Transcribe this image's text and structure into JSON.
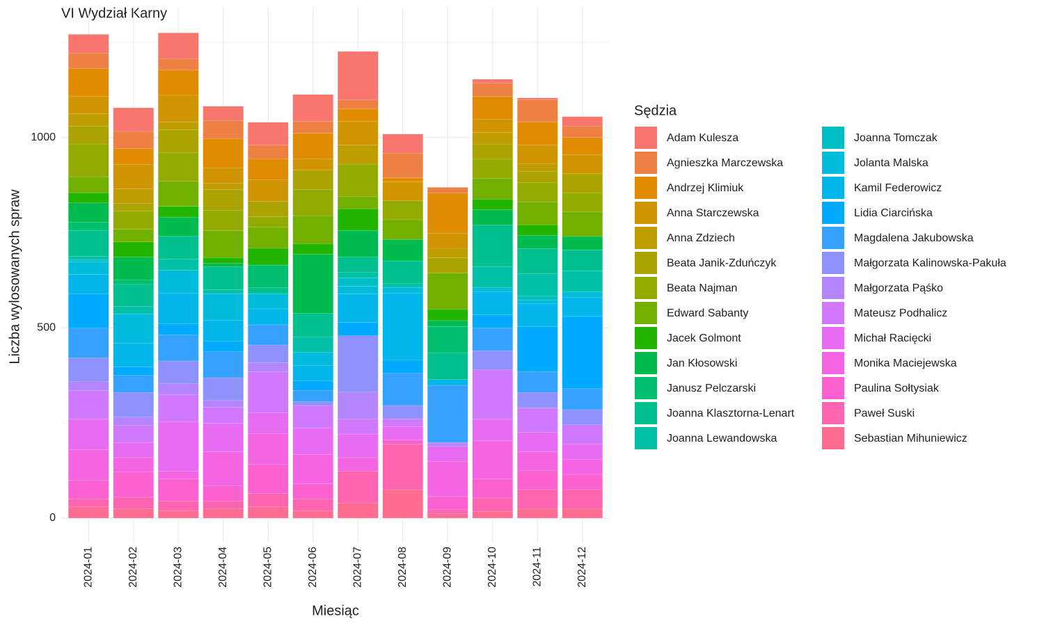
{
  "chart_data": {
    "type": "stacked_bar",
    "title": "VI Wydział Karny",
    "x_label": "Miesiąc",
    "y_label": "Liczba wylosowanych spraw",
    "legend_title": "Sędzia",
    "legend_position": "right",
    "grid": true,
    "categories": [
      "2024-01",
      "2024-02",
      "2024-03",
      "2024-04",
      "2024-05",
      "2024-06",
      "2024-07",
      "2024-08",
      "2024-09",
      "2024-10",
      "2024-11",
      "2024-12"
    ],
    "ylim": [
      -64,
      1343
    ],
    "yticks": [
      0,
      500,
      1000
    ],
    "minor_yticks": [
      250,
      750,
      1250
    ],
    "series": [
      {
        "name": "Adam Kulesza",
        "color": "#F8766D",
        "values": [
          49,
          62,
          68,
          38,
          60,
          70,
          127,
          50,
          0,
          10,
          5,
          25
        ]
      },
      {
        "name": "Agnieszka Marczewska",
        "color": "#EE8044",
        "values": [
          40,
          45,
          30,
          47,
          36,
          32,
          23,
          65,
          15,
          35,
          58,
          30
        ]
      },
      {
        "name": "Andrzej Klimiuk",
        "color": "#E08B00",
        "values": [
          73,
          42,
          66,
          77,
          55,
          67,
          33,
          10,
          105,
          60,
          60,
          45
        ]
      },
      {
        "name": "Anna Starczewska",
        "color": "#D09400",
        "values": [
          47,
          64,
          70,
          40,
          57,
          30,
          63,
          50,
          40,
          35,
          50,
          50
        ]
      },
      {
        "name": "Anna Zdziech",
        "color": "#BF9C00",
        "values": [
          33,
          38,
          20,
          17,
          0,
          0,
          50,
          0,
          25,
          30,
          20,
          0
        ]
      },
      {
        "name": "Beata Janik-Zduńczyk",
        "color": "#AAA300",
        "values": [
          46,
          20,
          60,
          55,
          40,
          50,
          0,
          0,
          40,
          40,
          30,
          50
        ]
      },
      {
        "name": "Beata Najman",
        "color": "#93AA00",
        "values": [
          86,
          48,
          76,
          53,
          28,
          70,
          85,
          50,
          0,
          50,
          50,
          50
        ]
      },
      {
        "name": "Edward Sabanty",
        "color": "#72B000",
        "values": [
          42,
          33,
          66,
          70,
          55,
          73,
          32,
          52,
          95,
          55,
          60,
          65
        ]
      },
      {
        "name": "Jacek Golmont",
        "color": "#22B500",
        "values": [
          27,
          40,
          28,
          15,
          44,
          28,
          57,
          0,
          30,
          28,
          28,
          0
        ]
      },
      {
        "name": "Jan Kłosowski",
        "color": "#00BB4E",
        "values": [
          51,
          60,
          50,
          10,
          0,
          155,
          70,
          56,
          15,
          40,
          35,
          35
        ]
      },
      {
        "name": "Janusz Pelczarski",
        "color": "#00BE70",
        "values": [
          22,
          12,
          0,
          0,
          60,
          0,
          0,
          0,
          70,
          0,
          0,
          0
        ]
      },
      {
        "name": "Joanna Klasztorna-Lenart",
        "color": "#00C08E",
        "values": [
          67,
          58,
          60,
          60,
          15,
          62,
          40,
          60,
          70,
          110,
          65,
          55
        ]
      },
      {
        "name": "Joanna Lewandowska",
        "color": "#00C1A7",
        "values": [
          9,
          19,
          30,
          10,
          0,
          40,
          15,
          10,
          0,
          55,
          60,
          55
        ]
      },
      {
        "name": "Joanna Tomczak",
        "color": "#00BFC4",
        "values": [
          5,
          0,
          0,
          0,
          0,
          0,
          22,
          0,
          0,
          0,
          10,
          0
        ]
      },
      {
        "name": "Jolanta Malska",
        "color": "#00BBDB",
        "values": [
          33,
          77,
          60,
          70,
          40,
          35,
          20,
          15,
          0,
          10,
          10,
          15
        ]
      },
      {
        "name": "Kamil Federowicz",
        "color": "#00B6EB",
        "values": [
          51,
          63,
          80,
          55,
          42,
          40,
          75,
          175,
          15,
          60,
          60,
          50
        ]
      },
      {
        "name": "Lidia Ciarcińska",
        "color": "#00ABFD",
        "values": [
          91,
          22,
          30,
          28,
          0,
          25,
          35,
          35,
          0,
          35,
          118,
          190
        ]
      },
      {
        "name": "Magdalena Jakubowska",
        "color": "#35A2FF",
        "values": [
          78,
          45,
          68,
          68,
          53,
          30,
          0,
          85,
          150,
          60,
          55,
          55
        ]
      },
      {
        "name": "Małgorzata Kalinowska-Pakuła",
        "color": "#8F91FF",
        "values": [
          62,
          64,
          60,
          60,
          46,
          10,
          148,
          35,
          0,
          50,
          40,
          40
        ]
      },
      {
        "name": "Małgorzata Pąśko",
        "color": "#B385FF",
        "values": [
          24,
          22,
          28,
          18,
          25,
          0,
          70,
          0,
          10,
          0,
          0,
          0
        ]
      },
      {
        "name": "Mateusz Podhalicz",
        "color": "#D078FF",
        "values": [
          75,
          45,
          72,
          42,
          107,
          60,
          40,
          20,
          0,
          130,
          65,
          50
        ]
      },
      {
        "name": "Michał Racięcki",
        "color": "#E76BF3",
        "values": [
          80,
          40,
          130,
          75,
          55,
          68,
          62,
          36,
          40,
          57,
          50,
          40
        ]
      },
      {
        "name": "Monika Maciejewska",
        "color": "#F564E3",
        "values": [
          80,
          38,
          20,
          89,
          80,
          78,
          35,
          0,
          92,
          100,
          50,
          40
        ]
      },
      {
        "name": "Paulina Sołtysiak",
        "color": "#FD61D1",
        "values": [
          50,
          66,
          58,
          40,
          77,
          40,
          0,
          10,
          35,
          50,
          50,
          40
        ]
      },
      {
        "name": "Paweł Suski",
        "color": "#FF64B0",
        "values": [
          20,
          30,
          25,
          20,
          35,
          30,
          84,
          120,
          10,
          35,
          50,
          50
        ]
      },
      {
        "name": "Sebastian Mihuniewicz",
        "color": "#FF6C91",
        "values": [
          30,
          25,
          20,
          25,
          30,
          20,
          40,
          75,
          12,
          18,
          25,
          25
        ]
      }
    ]
  }
}
